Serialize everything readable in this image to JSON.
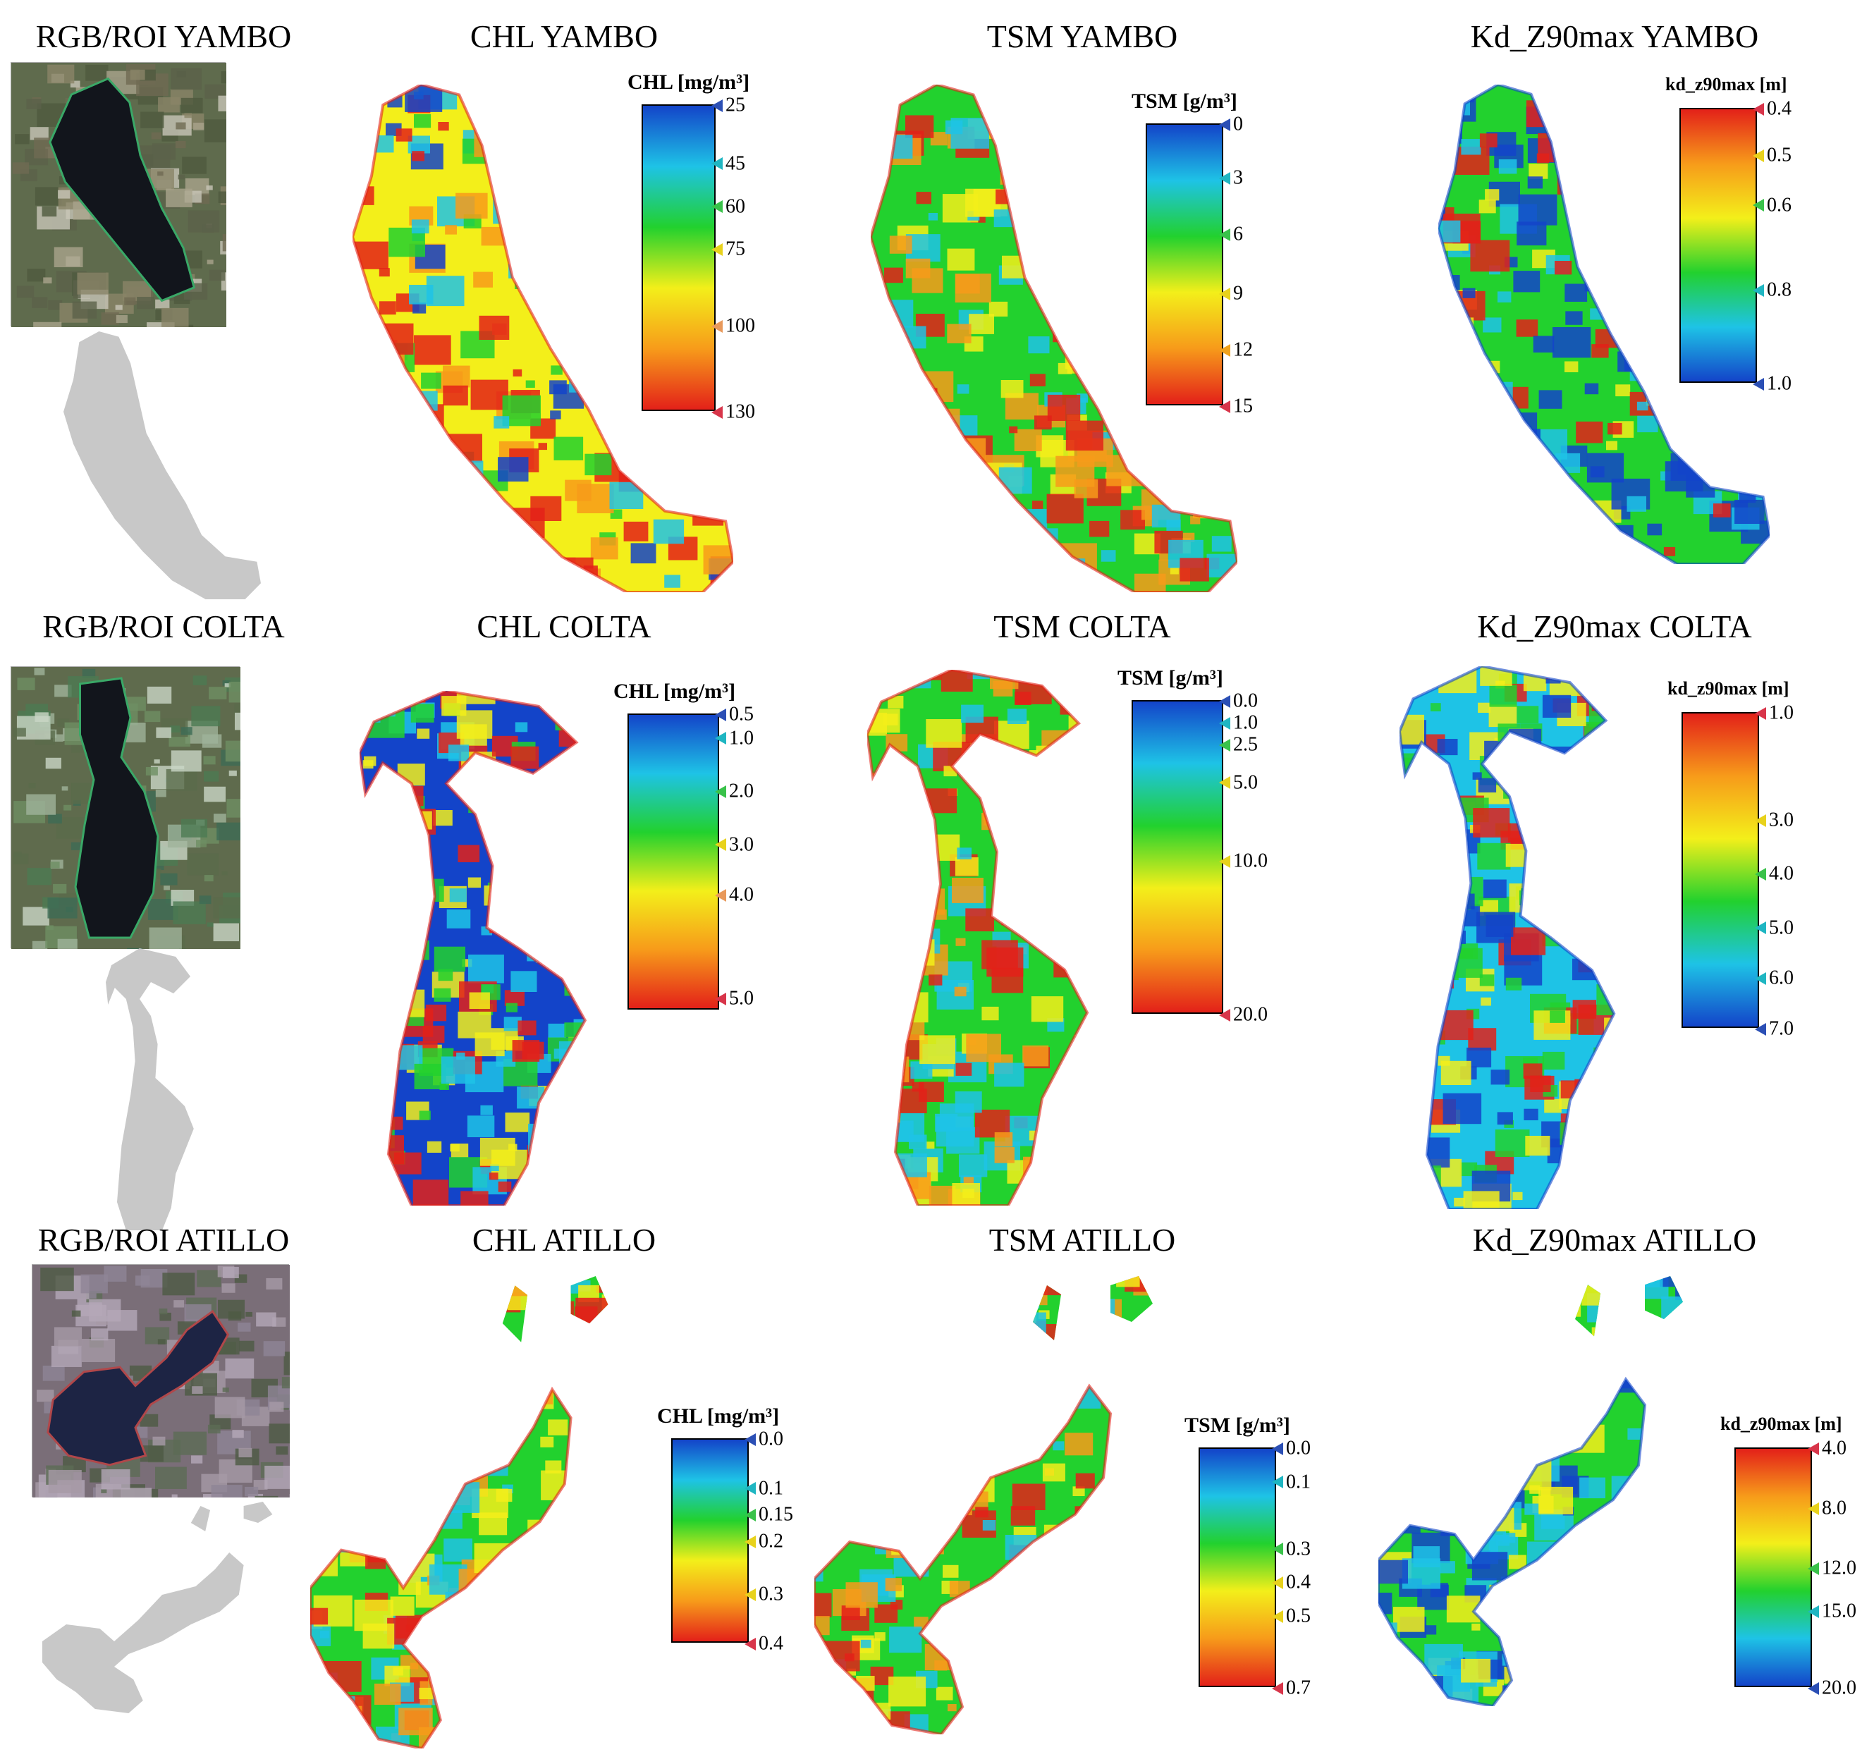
{
  "rows": [
    {
      "lake": "YAMBO",
      "titles": {
        "rgb": "RGB/ROI YAMBO",
        "chl": "CHL YAMBO",
        "tsm": "TSM YAMBO",
        "kd": "Kd_Z90max YAMBO"
      },
      "legends": {
        "chl": {
          "title": "CHL [mg/m³]",
          "reversed": true,
          "ticks": [
            {
              "label": "25",
              "f": 0.0,
              "color": "#2b4fb5"
            },
            {
              "label": "45",
              "f": 0.19,
              "color": "#1fb6c2"
            },
            {
              "label": "60",
              "f": 0.33,
              "color": "#39c24a"
            },
            {
              "label": "75",
              "f": 0.47,
              "color": "#e8d21c"
            },
            {
              "label": "100",
              "f": 0.72,
              "color": "#e8995b"
            },
            {
              "label": "130",
              "f": 1.0,
              "color": "#d8354a"
            }
          ]
        },
        "tsm": {
          "title": "TSM [g/m³]",
          "reversed": true,
          "ticks": [
            {
              "label": "0",
              "f": 0.0,
              "color": "#2b4fb5"
            },
            {
              "label": "3",
              "f": 0.19,
              "color": "#1fb6c2"
            },
            {
              "label": "6",
              "f": 0.39,
              "color": "#39c24a"
            },
            {
              "label": "9",
              "f": 0.6,
              "color": "#e8d21c"
            },
            {
              "label": "12",
              "f": 0.8,
              "color": "#f0a21c"
            },
            {
              "label": "15",
              "f": 1.0,
              "color": "#d8354a"
            }
          ]
        },
        "kd": {
          "title": "kd_z90max [m]",
          "reversed": false,
          "ticks": [
            {
              "label": "0.4",
              "f": 0.0,
              "color": "#d8354a"
            },
            {
              "label": "0.5",
              "f": 0.17,
              "color": "#e8d21c"
            },
            {
              "label": "0.6",
              "f": 0.35,
              "color": "#39c24a"
            },
            {
              "label": "0.8",
              "f": 0.66,
              "color": "#1fb6c2"
            },
            {
              "label": "1.0",
              "f": 1.0,
              "color": "#2b4fb5"
            }
          ]
        }
      }
    },
    {
      "lake": "COLTA",
      "titles": {
        "rgb": "RGB/ROI COLTA",
        "chl": "CHL COLTA",
        "tsm": "TSM COLTA",
        "kd": "Kd_Z90max COLTA"
      },
      "legends": {
        "chl": {
          "title": "CHL [mg/m³]",
          "reversed": true,
          "ticks": [
            {
              "label": "0.5",
              "f": 0.0,
              "color": "#2b4fb5"
            },
            {
              "label": "1.0",
              "f": 0.08,
              "color": "#1fb6c2"
            },
            {
              "label": "2.0",
              "f": 0.26,
              "color": "#39c24a"
            },
            {
              "label": "3.0",
              "f": 0.44,
              "color": "#e8d21c"
            },
            {
              "label": "4.0",
              "f": 0.61,
              "color": "#e8995b"
            },
            {
              "label": "5.0",
              "f": 0.96,
              "color": "#d8354a"
            }
          ]
        },
        "tsm": {
          "title": "TSM [g/m³]",
          "reversed": true,
          "ticks": [
            {
              "label": "0.0",
              "f": 0.0,
              "color": "#2b4fb5"
            },
            {
              "label": "1.0",
              "f": 0.07,
              "color": "#1fb6c2"
            },
            {
              "label": "2.5",
              "f": 0.14,
              "color": "#39c24a"
            },
            {
              "label": "5.0",
              "f": 0.26,
              "color": "#e8d21c"
            },
            {
              "label": "10.0",
              "f": 0.51,
              "color": "#e8d21c"
            },
            {
              "label": "20.0",
              "f": 1.0,
              "color": "#d8354a"
            }
          ]
        },
        "kd": {
          "title": "kd_z90max [m]",
          "reversed": false,
          "ticks": [
            {
              "label": "1.0",
              "f": 0.0,
              "color": "#d8354a"
            },
            {
              "label": "3.0",
              "f": 0.34,
              "color": "#e8d21c"
            },
            {
              "label": "4.0",
              "f": 0.51,
              "color": "#39c24a"
            },
            {
              "label": "5.0",
              "f": 0.68,
              "color": "#1fb6c2"
            },
            {
              "label": "6.0",
              "f": 0.84,
              "color": "#1fb6c2"
            },
            {
              "label": "7.0",
              "f": 1.0,
              "color": "#2b4fb5"
            }
          ]
        }
      }
    },
    {
      "lake": "ATILLO",
      "titles": {
        "rgb": "RGB/ROI ATILLO",
        "chl": "CHL ATILLO",
        "tsm": "TSM ATILLO",
        "kd": "Kd_Z90max ATILLO"
      },
      "legends": {
        "chl": {
          "title": "CHL [mg/m³]",
          "reversed": true,
          "ticks": [
            {
              "label": "0.0",
              "f": 0.0,
              "color": "#2b4fb5"
            },
            {
              "label": "0.1",
              "f": 0.24,
              "color": "#1fb6c2"
            },
            {
              "label": "0.15",
              "f": 0.37,
              "color": "#39c24a"
            },
            {
              "label": "0.2",
              "f": 0.5,
              "color": "#e8d21c"
            },
            {
              "label": "0.3",
              "f": 0.76,
              "color": "#e8d21c"
            },
            {
              "label": "0.4",
              "f": 1.0,
              "color": "#d8354a"
            }
          ]
        },
        "tsm": {
          "title": "TSM [g/m³]",
          "reversed": true,
          "ticks": [
            {
              "label": "0.0",
              "f": 0.0,
              "color": "#2b4fb5"
            },
            {
              "label": "0.1",
              "f": 0.14,
              "color": "#1fb6c2"
            },
            {
              "label": "0.3",
              "f": 0.42,
              "color": "#39c24a"
            },
            {
              "label": "0.4",
              "f": 0.56,
              "color": "#e8d21c"
            },
            {
              "label": "0.5",
              "f": 0.7,
              "color": "#e8d21c"
            },
            {
              "label": "0.7",
              "f": 1.0,
              "color": "#d8354a"
            }
          ]
        },
        "kd": {
          "title": "kd_z90max [m]",
          "reversed": false,
          "ticks": [
            {
              "label": "4.0",
              "f": 0.0,
              "color": "#d8354a"
            },
            {
              "label": "8.0",
              "f": 0.25,
              "color": "#e8d21c"
            },
            {
              "label": "12.0",
              "f": 0.5,
              "color": "#39c24a"
            },
            {
              "label": "15.0",
              "f": 0.68,
              "color": "#1fb6c2"
            },
            {
              "label": "20.0",
              "f": 1.0,
              "color": "#2b4fb5"
            }
          ]
        }
      }
    }
  ],
  "colors": {
    "red": "#e32119",
    "orange": "#f79b1a",
    "yellow": "#f3ef1a",
    "green": "#22d12e",
    "cyan": "#1ec3e6",
    "blue": "#1344c9",
    "roi": "#c8c8c8",
    "water": "#12151c"
  }
}
